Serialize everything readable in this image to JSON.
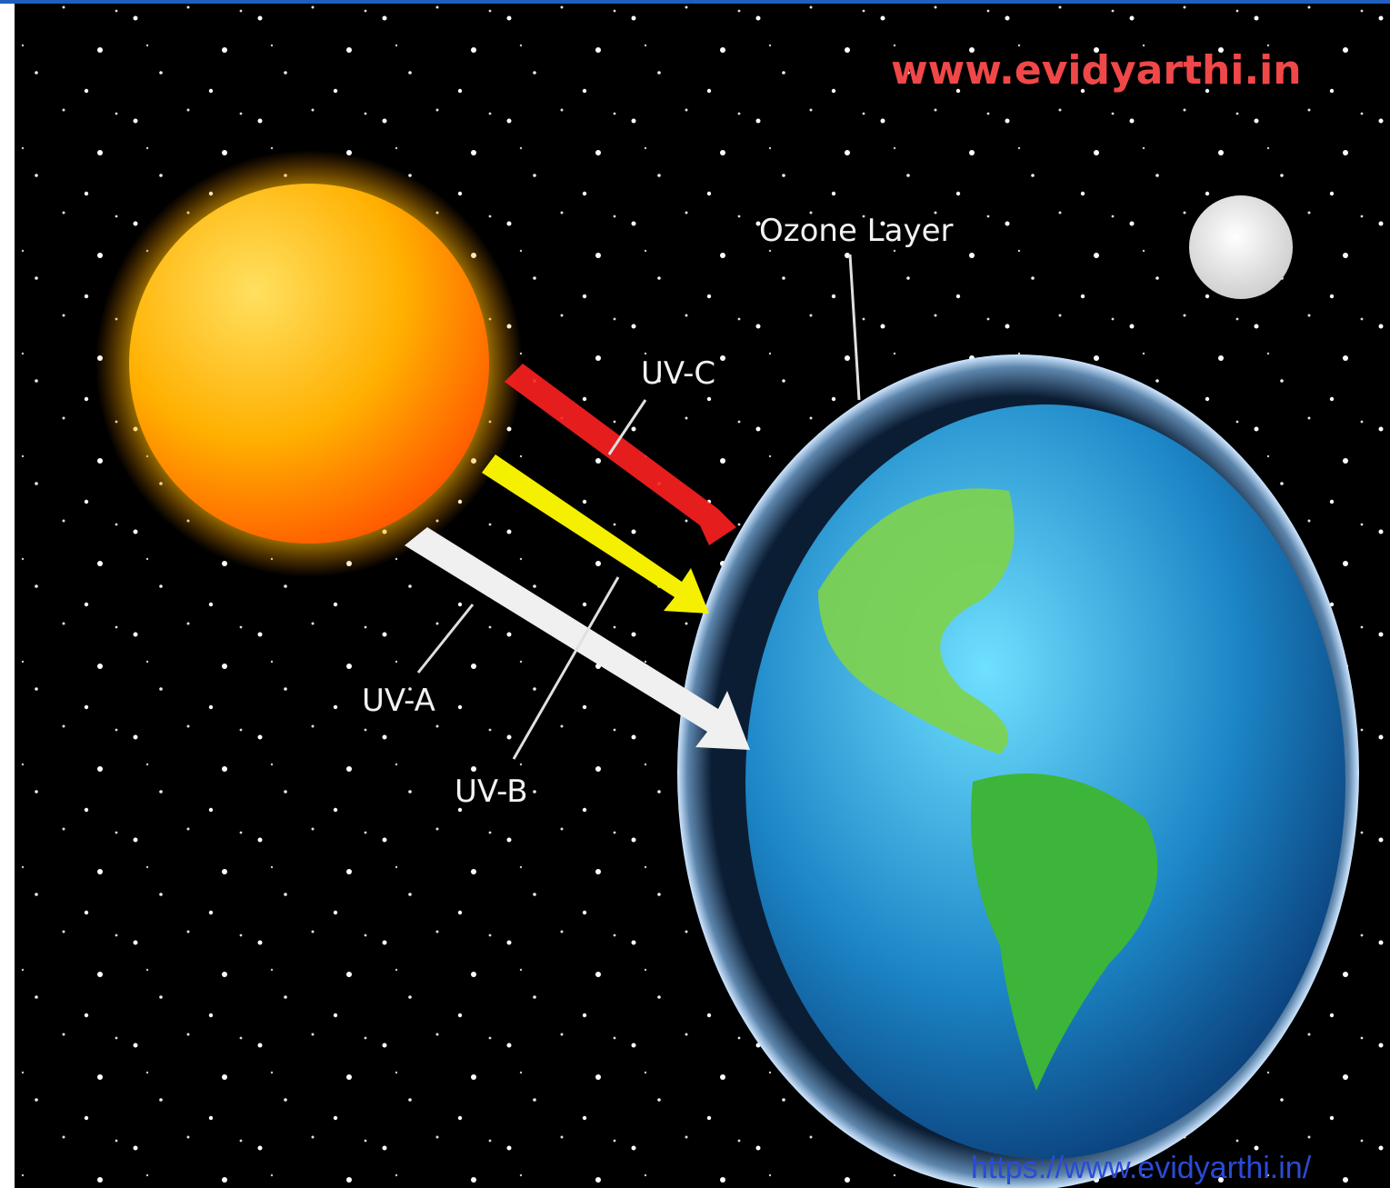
{
  "watermark": "www.evidyarthi.in",
  "labels": {
    "ozone_layer": "Ozone Layer",
    "uv_c": "UV-C",
    "uv_a": "UV-A",
    "uv_b": "UV-B"
  },
  "footer_url": "https://www.evidyarthi.in/"
}
